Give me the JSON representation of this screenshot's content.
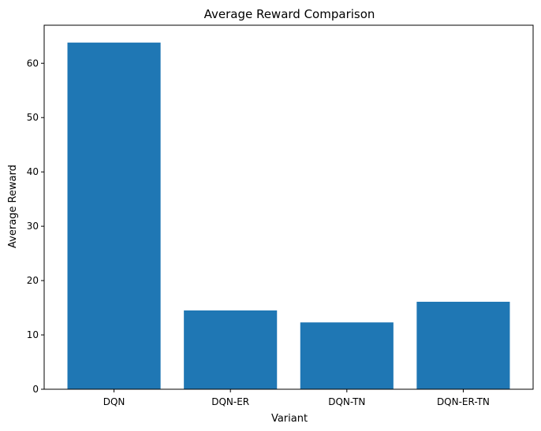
{
  "chart_data": {
    "type": "bar",
    "title": "Average Reward Comparison",
    "xlabel": "Variant",
    "ylabel": "Average Reward",
    "categories": [
      "DQN",
      "DQN-ER",
      "DQN-TN",
      "DQN-ER-TN"
    ],
    "values": [
      63.8,
      14.5,
      12.3,
      16.1
    ],
    "ylim": [
      0,
      67
    ],
    "yticks": [
      0,
      10,
      20,
      30,
      40,
      50,
      60
    ],
    "grid": false,
    "bar_color": "#1f77b4"
  }
}
